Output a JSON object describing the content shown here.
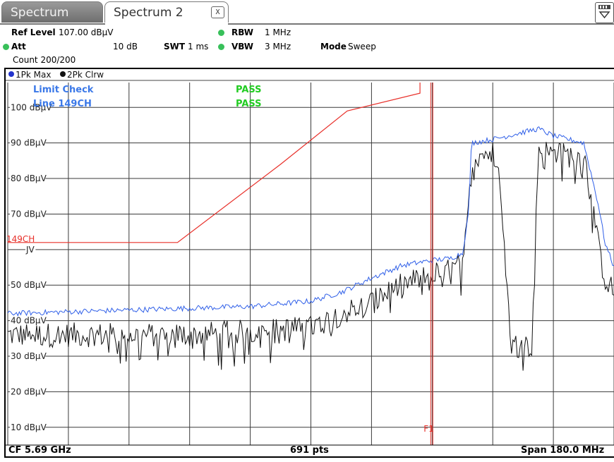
{
  "tabs": [
    {
      "label": "Spectrum",
      "active": false
    },
    {
      "label": "Spectrum 2",
      "active": true,
      "close_label": "X"
    }
  ],
  "settings": {
    "ref_level_label": "Ref Level",
    "ref_level_value": "107.00 dBµV",
    "att_label": "Att",
    "att_value": "10 dB",
    "swt_label": "SWT",
    "swt_value": "1 ms",
    "rbw_label": "RBW",
    "rbw_value": "1 MHz",
    "vbw_label": "VBW",
    "vbw_value": "3 MHz",
    "mode_label": "Mode",
    "mode_value": "Sweep",
    "count": "Count 200/200"
  },
  "traces": [
    {
      "label": "1Pk Max",
      "color": "#2233cc"
    },
    {
      "label": "2Pk Clrw",
      "color": "#111111"
    }
  ],
  "limit_check": {
    "label": "Limit Check",
    "line": "Line 149CH",
    "status1": "PASS",
    "status2": "PASS",
    "line_tag": "149CH",
    "label_color": "#3a78e8",
    "pass_color": "#22cc22"
  },
  "marker": {
    "label": "F1",
    "color": "#e8302a"
  },
  "footer": {
    "cf": "CF 5.69 GHz",
    "points": "691 pts",
    "span": "Span 180.0 MHz"
  },
  "colors": {
    "max_trace": "#2f5fe8",
    "clrw_trace": "#111111",
    "limit_line": "#e8302a",
    "grid": "#3a3a3a"
  },
  "chart_data": {
    "type": "line",
    "ylim": [
      5,
      107
    ],
    "yticks": [
      {
        "value": 100,
        "label": "100 dBµV"
      },
      {
        "value": 90,
        "label": "90 dBµV"
      },
      {
        "value": 80,
        "label": "80 dBµV"
      },
      {
        "value": 70,
        "label": "70 dBµV"
      },
      {
        "value": 60,
        "label": "JV"
      },
      {
        "value": 50,
        "label": "50 dBµV"
      },
      {
        "value": 40,
        "label": "40 dBµV"
      },
      {
        "value": 30,
        "label": "30 dBµV"
      },
      {
        "value": 20,
        "label": "20 dBµV"
      },
      {
        "value": 10,
        "label": "10 dBµV"
      }
    ],
    "xdivisions": 10,
    "xlim": [
      0,
      10
    ],
    "grid": true,
    "series": [
      {
        "name": "1Pk Max",
        "x": [
          0,
          1,
          2,
          3,
          4,
          5,
          5.5,
          6,
          6.5,
          7,
          7.3,
          7.5,
          7.6,
          7.65,
          8.0,
          8.5,
          8.75,
          9.0,
          9.5,
          9.6,
          9.75,
          9.85,
          10.0
        ],
        "y": [
          42,
          42.5,
          43,
          43.5,
          44,
          45.5,
          48,
          52,
          55.5,
          57,
          57.5,
          59,
          70,
          90,
          91,
          93,
          94,
          92,
          90,
          83,
          72,
          62,
          55
        ]
      },
      {
        "name": "2Pk Clrw",
        "x": [
          0,
          1,
          2,
          3,
          4,
          5,
          5.5,
          6,
          6.5,
          7,
          7.3,
          7.5,
          7.6,
          7.65,
          8.0,
          8.1,
          8.2,
          8.3,
          8.65,
          8.75,
          9.0,
          9.5,
          9.6,
          9.75,
          9.85,
          10.0
        ],
        "y": [
          36,
          36,
          36,
          36,
          37,
          38,
          42,
          45,
          50,
          53,
          54,
          56,
          70,
          87,
          87,
          86,
          60,
          33,
          33,
          88,
          87,
          86,
          80,
          60,
          52,
          48
        ]
      },
      {
        "name": "149CH",
        "x": [
          0,
          2.8,
          4.5,
          5.6,
          6.8,
          6.8
        ],
        "y": [
          62,
          62,
          84,
          99,
          104,
          107
        ]
      }
    ],
    "marker": {
      "name": "F1",
      "x": 7.0
    }
  }
}
